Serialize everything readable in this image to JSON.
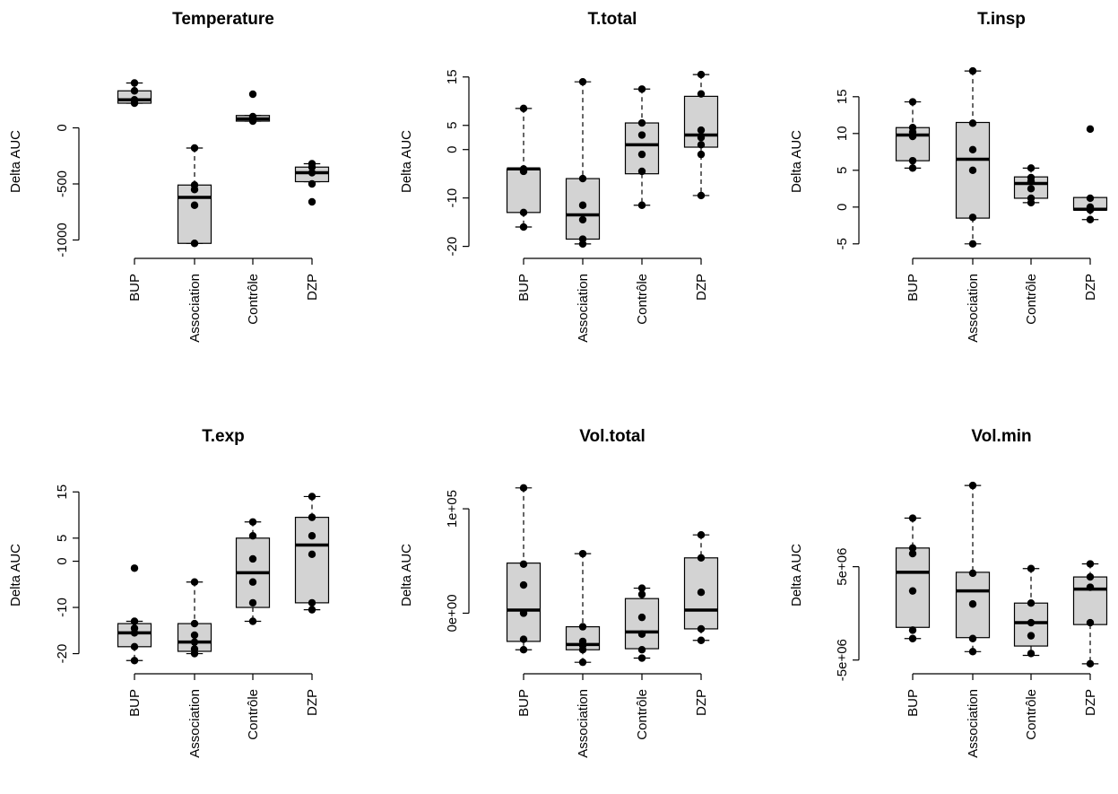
{
  "chart_data": [
    {
      "type": "box",
      "title": "Temperature",
      "ylabel": "Delta AUC",
      "categories": [
        "BUP",
        "Association",
        "Contrôle",
        "DZP"
      ],
      "ylim": [
        -1100,
        500
      ],
      "yticks": [
        0,
        -500,
        -1000
      ],
      "yticklabels": [
        "0",
        "-500",
        "-1000"
      ],
      "boxes": [
        {
          "q1": 220,
          "median": 250,
          "q3": 330,
          "lower": 220,
          "upper": 400
        },
        {
          "q1": -1030,
          "median": -620,
          "q3": -510,
          "lower": -1030,
          "upper": -180
        },
        {
          "q1": 60,
          "median": 80,
          "q3": 110,
          "lower": 60,
          "upper": 110
        },
        {
          "q1": -480,
          "median": -400,
          "q3": -350,
          "lower": -480,
          "upper": -320
        }
      ],
      "points": [
        [
          400,
          330,
          250,
          220
        ],
        [
          -180,
          -510,
          -550,
          -690,
          -1030
        ],
        [
          300,
          100,
          80,
          60
        ],
        [
          -320,
          -350,
          -400,
          -500,
          -660
        ]
      ]
    },
    {
      "type": "box",
      "title": "T.total",
      "ylabel": "Delta AUC",
      "categories": [
        "BUP",
        "Association",
        "Contrôle",
        "DZP"
      ],
      "ylim": [
        -21,
        17
      ],
      "yticks": [
        -20,
        -10,
        0,
        5,
        15
      ],
      "yticklabels": [
        "-20",
        "-10",
        "0",
        "5",
        "15"
      ],
      "boxes": [
        {
          "q1": -13,
          "median": -4,
          "q3": -4,
          "lower": -16,
          "upper": 8.5
        },
        {
          "q1": -18.5,
          "median": -13.5,
          "q3": -6,
          "lower": -19.5,
          "upper": 14
        },
        {
          "q1": -5,
          "median": 1,
          "q3": 5.5,
          "lower": -11.5,
          "upper": 12.5
        },
        {
          "q1": 0.5,
          "median": 3,
          "q3": 11,
          "lower": -9.5,
          "upper": 15.5
        }
      ],
      "points": [
        [
          8.5,
          -4,
          -4.5,
          -13,
          -16
        ],
        [
          14,
          -6,
          -11.5,
          -14.5,
          -18.5,
          -19.5
        ],
        [
          12.5,
          3,
          5.5,
          -1,
          -4.5,
          -11.5
        ],
        [
          15.5,
          11.5,
          4,
          2.5,
          1,
          -1,
          -9.5
        ]
      ]
    },
    {
      "type": "box",
      "title": "T.insp",
      "ylabel": "Delta AUC",
      "categories": [
        "BUP",
        "Association",
        "Contrôle",
        "DZP"
      ],
      "ylim": [
        -6,
        19
      ],
      "yticks": [
        -5,
        0,
        5,
        10,
        15
      ],
      "yticklabels": [
        "-5",
        "0",
        "5",
        "10",
        "15"
      ],
      "boxes": [
        {
          "q1": 6.3,
          "median": 9.8,
          "q3": 10.8,
          "lower": 5.3,
          "upper": 14.3
        },
        {
          "q1": -1.5,
          "median": 6.5,
          "q3": 11.5,
          "lower": -5,
          "upper": 18.5
        },
        {
          "q1": 1.2,
          "median": 3.2,
          "q3": 4.1,
          "lower": 0.6,
          "upper": 5.3
        },
        {
          "q1": -0.4,
          "median": -0.3,
          "q3": 1.3,
          "lower": -1.7,
          "upper": 1.3
        }
      ],
      "points": [
        [
          14.3,
          10.8,
          10.2,
          9.6,
          6.3,
          5.3
        ],
        [
          18.5,
          11.4,
          7.8,
          5,
          -1.4,
          -5
        ],
        [
          5.3,
          4,
          3.5,
          2.5,
          1.2,
          0.6
        ],
        [
          10.6,
          1.2,
          0,
          -0.4,
          -1.7
        ]
      ]
    },
    {
      "type": "box",
      "title": "T.exp",
      "ylabel": "Delta AUC",
      "categories": [
        "BUP",
        "Association",
        "Contrôle",
        "DZP"
      ],
      "ylim": [
        -23,
        17
      ],
      "yticks": [
        -20,
        -10,
        0,
        5,
        15
      ],
      "yticklabels": [
        "-20",
        "-10",
        "0",
        "5",
        "15"
      ],
      "boxes": [
        {
          "q1": -18.5,
          "median": -15.5,
          "q3": -13.5,
          "lower": -21.5,
          "upper": -13
        },
        {
          "q1": -19.5,
          "median": -17.5,
          "q3": -13.5,
          "lower": -20,
          "upper": -4.5
        },
        {
          "q1": -10,
          "median": -2.5,
          "q3": 5,
          "lower": -13,
          "upper": 8.5
        },
        {
          "q1": -9,
          "median": 3.5,
          "q3": 9.5,
          "lower": -10.5,
          "upper": 14
        }
      ],
      "points": [
        [
          -1.5,
          -13,
          -14.5,
          -15.5,
          -18.5,
          -21.5
        ],
        [
          -4.5,
          -13.5,
          -16,
          -17.5,
          -19,
          -20
        ],
        [
          8.5,
          5.5,
          0.5,
          -4.5,
          -9,
          -13
        ],
        [
          14,
          9.5,
          5.5,
          1.5,
          -9,
          -10.5
        ]
      ]
    },
    {
      "type": "box",
      "title": "Vol.total",
      "ylabel": "Delta AUC",
      "categories": [
        "BUP",
        "Association",
        "Contrôle",
        "DZP"
      ],
      "ylim": [
        -52000,
        125000
      ],
      "yticks": [
        0,
        100000
      ],
      "yticklabels": [
        "0e+00",
        "1e+05"
      ],
      "boxes": [
        {
          "q1": -27000,
          "median": 3000,
          "q3": 48000,
          "lower": -35000,
          "upper": 120000
        },
        {
          "q1": -35000,
          "median": -30000,
          "q3": -13000,
          "lower": -47000,
          "upper": 57000
        },
        {
          "q1": -34000,
          "median": -18000,
          "q3": 14000,
          "lower": -43000,
          "upper": 24000
        },
        {
          "q1": -15000,
          "median": 3000,
          "q3": 53000,
          "lower": -26000,
          "upper": 75000
        }
      ],
      "points": [
        [
          120000,
          47000,
          27000,
          0,
          -25000,
          -35000
        ],
        [
          57000,
          -13000,
          -27000,
          -31000,
          -35000,
          -47000
        ],
        [
          24000,
          18000,
          -4000,
          -20000,
          -35000,
          -43000
        ],
        [
          75000,
          53000,
          20000,
          -15000,
          -26000
        ]
      ]
    },
    {
      "type": "box",
      "title": "Vol.min",
      "ylabel": "Delta AUC",
      "categories": [
        "BUP",
        "Association",
        "Contrôle",
        "DZP"
      ],
      "ylim": [
        -5800000,
        14000000
      ],
      "yticks": [
        -5000000,
        5000000
      ],
      "yticklabels": [
        "-5e+06",
        "5e+06"
      ],
      "boxes": [
        {
          "q1": -1500000,
          "median": 4400000,
          "q3": 7000000,
          "lower": -2700000,
          "upper": 10200000
        },
        {
          "q1": -2600000,
          "median": 2400000,
          "q3": 4400000,
          "lower": -4100000,
          "upper": 13700000
        },
        {
          "q1": -3500000,
          "median": -1000000,
          "q3": 1100000,
          "lower": -4500000,
          "upper": 4800000
        },
        {
          "q1": -1200000,
          "median": 2600000,
          "q3": 3900000,
          "lower": -5400000,
          "upper": 5300000
        }
      ],
      "points": [
        [
          10200000,
          7000000,
          6400000,
          2400000,
          -1800000,
          -2700000
        ],
        [
          13700000,
          4300000,
          1000000,
          -2700000,
          -4100000
        ],
        [
          4800000,
          1100000,
          -1000000,
          -2400000,
          -4300000
        ],
        [
          5300000,
          3900000,
          2800000,
          -1000000,
          -5400000
        ]
      ]
    }
  ]
}
